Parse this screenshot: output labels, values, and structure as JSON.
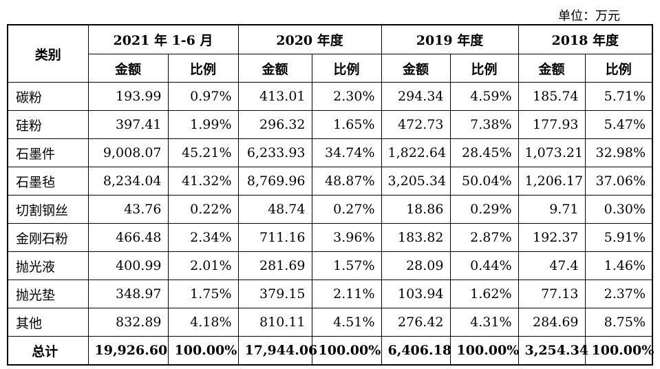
{
  "unit_label": "单位：万元",
  "header": {
    "category": "类别",
    "periods": [
      "2021 年 1-6 月",
      "2020 年度",
      "2019 年度",
      "2018 年度"
    ],
    "amount": "金额",
    "ratio": "比例"
  },
  "rows": [
    {
      "name": "碳粉",
      "cells": [
        "193.99",
        "0.97%",
        "413.01",
        "2.30%",
        "294.34",
        "4.59%",
        "185.74",
        "5.71%"
      ]
    },
    {
      "name": "硅粉",
      "cells": [
        "397.41",
        "1.99%",
        "296.32",
        "1.65%",
        "472.73",
        "7.38%",
        "177.93",
        "5.47%"
      ]
    },
    {
      "name": "石墨件",
      "cells": [
        "9,008.07",
        "45.21%",
        "6,233.93",
        "34.74%",
        "1,822.64",
        "28.45%",
        "1,073.21",
        "32.98%"
      ]
    },
    {
      "name": "石墨毡",
      "cells": [
        "8,234.04",
        "41.32%",
        "8,769.96",
        "48.87%",
        "3,205.34",
        "50.04%",
        "1,206.17",
        "37.06%"
      ]
    },
    {
      "name": "切割钢丝",
      "cells": [
        "43.76",
        "0.22%",
        "48.74",
        "0.27%",
        "18.86",
        "0.29%",
        "9.71",
        "0.30%"
      ]
    },
    {
      "name": "金刚石粉",
      "cells": [
        "466.48",
        "2.34%",
        "711.16",
        "3.96%",
        "183.82",
        "2.87%",
        "192.37",
        "5.91%"
      ]
    },
    {
      "name": "抛光液",
      "cells": [
        "400.99",
        "2.01%",
        "281.69",
        "1.57%",
        "28.09",
        "0.44%",
        "47.4",
        "1.46%"
      ]
    },
    {
      "name": "抛光垫",
      "cells": [
        "348.97",
        "1.75%",
        "379.15",
        "2.11%",
        "103.94",
        "1.62%",
        "77.13",
        "2.37%"
      ]
    },
    {
      "name": "其他",
      "cells": [
        "832.89",
        "4.18%",
        "810.11",
        "4.51%",
        "276.42",
        "4.31%",
        "284.69",
        "8.75%"
      ]
    }
  ],
  "total": {
    "name": "总计",
    "cells": [
      "19,926.60",
      "100.00%",
      "17,944.06",
      "100.00%",
      "6,406.18",
      "100.00%",
      "3,254.34",
      "100.00%"
    ]
  }
}
